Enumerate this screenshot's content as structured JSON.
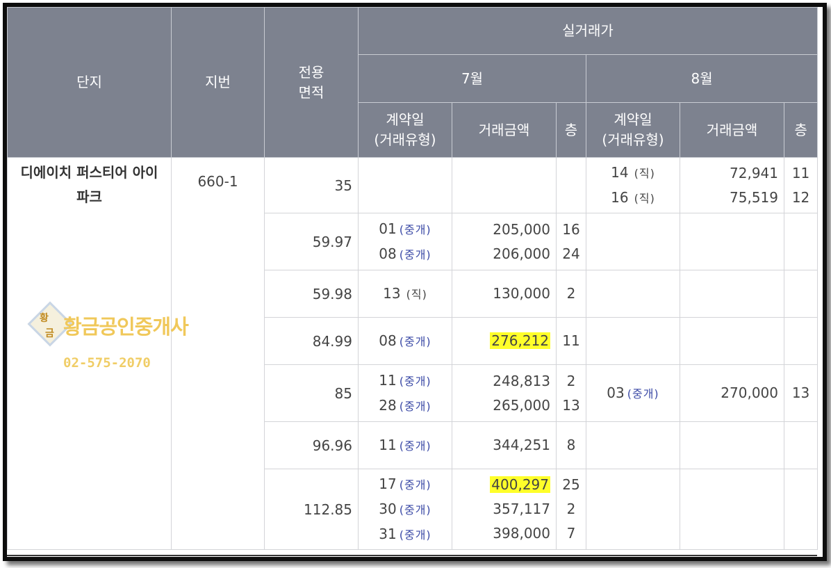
{
  "header": {
    "complex": "단지",
    "jibun": "지번",
    "area": "전용\n면적",
    "real_price": "실거래가",
    "month1": "7월",
    "month2": "8월",
    "contract_date": "계약일\n(거래유형)",
    "amount": "거래금액",
    "floor": "층"
  },
  "complex": {
    "name": "디에이치 퍼스티어 아이파크",
    "jibun": "660-1"
  },
  "watermark": {
    "name": "황금공인중개사",
    "phone": "02-575-2070",
    "seal_top": "황",
    "seal_bottom": "금"
  },
  "rows": [
    {
      "area": "35",
      "jul": [],
      "aug": [
        {
          "day": "14",
          "type": "(직)",
          "amount": "72,941",
          "floor": "11"
        },
        {
          "day": "16",
          "type": "(직)",
          "amount": "75,519",
          "floor": "12"
        }
      ]
    },
    {
      "area": "59.97",
      "jul": [
        {
          "day": "01",
          "type": "(중개)",
          "amount": "205,000",
          "floor": "16"
        },
        {
          "day": "08",
          "type": "(중개)",
          "amount": "206,000",
          "floor": "24"
        }
      ],
      "aug": []
    },
    {
      "area": "59.98",
      "jul": [
        {
          "day": "13",
          "type": "(직)",
          "amount": "130,000",
          "floor": "2"
        }
      ],
      "aug": []
    },
    {
      "area": "84.99",
      "jul": [
        {
          "day": "08",
          "type": "(중개)",
          "amount": "276,212",
          "floor": "11",
          "highlight": true
        }
      ],
      "aug": []
    },
    {
      "area": "85",
      "jul": [
        {
          "day": "11",
          "type": "(중개)",
          "amount": "248,813",
          "floor": "2"
        },
        {
          "day": "28",
          "type": "(중개)",
          "amount": "265,000",
          "floor": "13"
        }
      ],
      "aug": [
        {
          "day": "03",
          "type": "(중개)",
          "amount": "270,000",
          "floor": "13"
        }
      ]
    },
    {
      "area": "96.96",
      "jul": [
        {
          "day": "11",
          "type": "(중개)",
          "amount": "344,251",
          "floor": "8"
        }
      ],
      "aug": []
    },
    {
      "area": "112.85",
      "jul": [
        {
          "day": "17",
          "type": "(중개)",
          "amount": "400,297",
          "floor": "25",
          "highlight": true
        },
        {
          "day": "30",
          "type": "(중개)",
          "amount": "357,117",
          "floor": "2"
        },
        {
          "day": "31",
          "type": "(중개)",
          "amount": "398,000",
          "floor": "7"
        }
      ],
      "aug": []
    }
  ],
  "colors": {
    "header_bg": "#7d828f",
    "highlight": "#ffff2a",
    "trade_type": "#3b4aa6",
    "watermark": "#f0c85a"
  }
}
